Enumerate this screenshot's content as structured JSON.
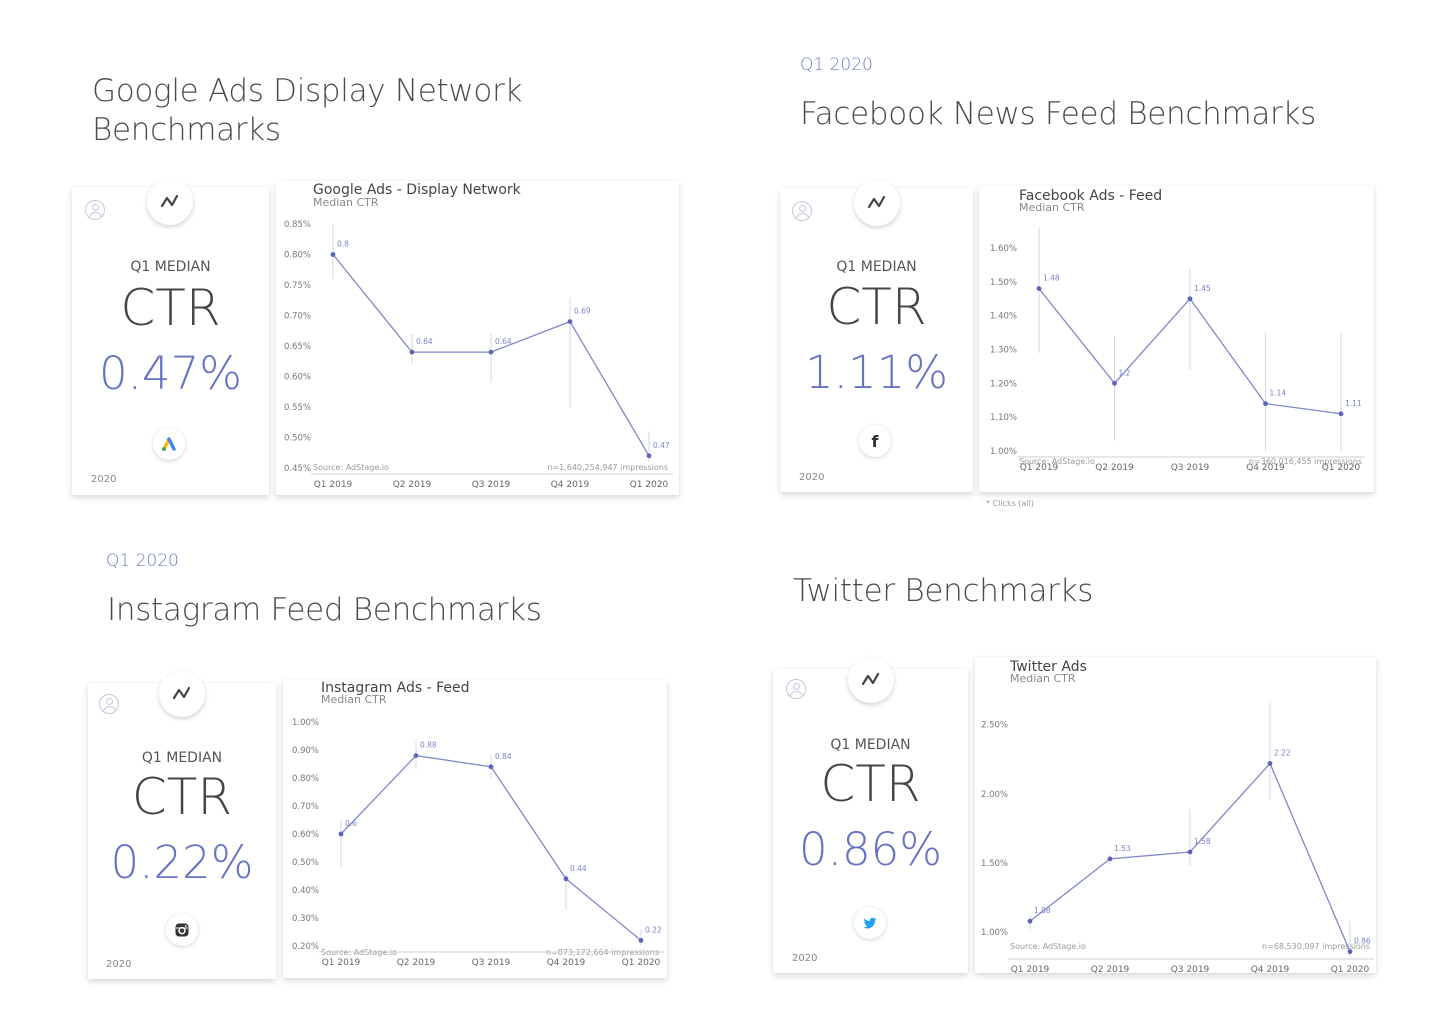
{
  "sections": [
    {
      "tag": "",
      "title_lines": [
        "Google Ads Display Network",
        "Benchmarks"
      ],
      "median_label": "Q1 MEDIAN",
      "metric": "CTR",
      "value": "0.47%",
      "year": "2020",
      "brand_icon": "google-ads-icon",
      "chart_title": "Google Ads - Display Network",
      "chart_subtitle": "Median CTR",
      "source_note": "Source: AdStage.io",
      "sample_note": "n=1,640,254,947 impressions",
      "footnote": ""
    },
    {
      "tag": "Q1 2020",
      "title_lines": [
        "Facebook News Feed Benchmarks"
      ],
      "median_label": "Q1 MEDIAN",
      "metric": "CTR",
      "value": "1.11%",
      "year": "2020",
      "brand_icon": "facebook-icon",
      "chart_title": "Facebook Ads - Feed",
      "chart_subtitle": "Median CTR",
      "source_note": "Source: AdStage.io",
      "sample_note": "n=360,016,455 impressions",
      "footnote": "* Clicks (all)"
    },
    {
      "tag": "Q1 2020",
      "title_lines": [
        "Instagram Feed Benchmarks"
      ],
      "median_label": "Q1 MEDIAN",
      "metric": "CTR",
      "value": "0.22%",
      "year": "2020",
      "brand_icon": "instagram-icon",
      "chart_title": "Instagram Ads - Feed",
      "chart_subtitle": "Median CTR",
      "source_note": "Source: AdStage.io",
      "sample_note": "n=873,172,664 impressions",
      "footnote": ""
    },
    {
      "tag": "",
      "title_lines": [
        "Twitter Benchmarks"
      ],
      "median_label": "Q1 MEDIAN",
      "metric": "CTR",
      "value": "0.86%",
      "year": "2020",
      "brand_icon": "twitter-icon",
      "chart_title": "Twitter Ads",
      "chart_subtitle": "Median CTR",
      "source_note": "Source: AdStage.io",
      "sample_note": "n=68,530,097 impressions",
      "footnote": ""
    }
  ],
  "colors": {
    "accent": "#6672c4",
    "line": "#7f88c9",
    "text": "#444444",
    "muted": "#888888"
  },
  "chart_data": [
    {
      "type": "line",
      "title": "Google Ads - Display Network",
      "subtitle": "Median CTR",
      "categories": [
        "Q1 2019",
        "Q2 2019",
        "Q3 2019",
        "Q4 2019",
        "Q1 2020"
      ],
      "values": [
        0.8,
        0.64,
        0.64,
        0.69,
        0.47
      ],
      "labels": [
        "0.8",
        "0.64",
        "0.64",
        "0.69",
        "0.47"
      ],
      "err_low": [
        0.76,
        0.62,
        0.59,
        0.55,
        0.46
      ],
      "err_high": [
        0.85,
        0.67,
        0.67,
        0.73,
        0.51
      ],
      "yticks": [
        0.45,
        0.5,
        0.55,
        0.6,
        0.65,
        0.7,
        0.75,
        0.8,
        0.85
      ],
      "ytick_labels": [
        "0.45%",
        "0.50%",
        "0.55%",
        "0.60%",
        "0.65%",
        "0.70%",
        "0.75%",
        "0.80%",
        "0.85%"
      ],
      "ylim": [
        0.45,
        0.85
      ]
    },
    {
      "type": "line",
      "title": "Facebook Ads - Feed",
      "subtitle": "Median CTR",
      "categories": [
        "Q1 2019",
        "Q2 2019",
        "Q3 2019",
        "Q4 2019",
        "Q1 2020"
      ],
      "values": [
        1.48,
        1.2,
        1.45,
        1.14,
        1.11
      ],
      "labels": [
        "1.48",
        "1.2",
        "1.45",
        "1.14",
        "1.11"
      ],
      "err_low": [
        1.29,
        1.03,
        1.24,
        1.0,
        1.0
      ],
      "err_high": [
        1.66,
        1.34,
        1.54,
        1.35,
        1.35
      ],
      "yticks": [
        1.0,
        1.1,
        1.2,
        1.3,
        1.4,
        1.5,
        1.6
      ],
      "ytick_labels": [
        "1.00%",
        "1.10%",
        "1.20%",
        "1.30%",
        "1.40%",
        "1.50%",
        "1.60%"
      ],
      "ylim": [
        1.0,
        1.6
      ]
    },
    {
      "type": "line",
      "title": "Instagram Ads - Feed",
      "subtitle": "Median CTR",
      "categories": [
        "Q1 2019",
        "Q2 2019",
        "Q3 2019",
        "Q4 2019",
        "Q1 2020"
      ],
      "values": [
        0.6,
        0.88,
        0.84,
        0.44,
        0.22
      ],
      "labels": [
        "0.6",
        "0.88",
        "0.84",
        "0.44",
        "0.22"
      ],
      "err_low": [
        0.48,
        0.83,
        0.8,
        0.33,
        0.2
      ],
      "err_high": [
        0.65,
        0.93,
        0.88,
        0.46,
        0.26
      ],
      "yticks": [
        0.2,
        0.3,
        0.4,
        0.5,
        0.6,
        0.7,
        0.8,
        0.9,
        1.0
      ],
      "ytick_labels": [
        "0.20%",
        "0.30%",
        "0.40%",
        "0.50%",
        "0.60%",
        "0.70%",
        "0.80%",
        "0.90%",
        "1.00%"
      ],
      "ylim": [
        0.2,
        1.0
      ]
    },
    {
      "type": "line",
      "title": "Twitter Ads",
      "subtitle": "Median CTR",
      "categories": [
        "Q1 2019",
        "Q2 2019",
        "Q3 2019",
        "Q4 2019",
        "Q1 2020"
      ],
      "values": [
        1.08,
        1.53,
        1.58,
        2.22,
        0.86
      ],
      "labels": [
        "1.08",
        "1.53",
        "1.58",
        "2.22",
        "0.86"
      ],
      "err_low": [
        1.02,
        1.49,
        1.48,
        1.96,
        0.82
      ],
      "err_high": [
        1.13,
        1.56,
        1.89,
        2.66,
        1.08
      ],
      "yticks": [
        1.0,
        1.5,
        2.0,
        2.5
      ],
      "ytick_labels": [
        "1.00%",
        "1.50%",
        "2.00%",
        "2.50%"
      ],
      "ylim": [
        0.85,
        2.7
      ]
    }
  ]
}
